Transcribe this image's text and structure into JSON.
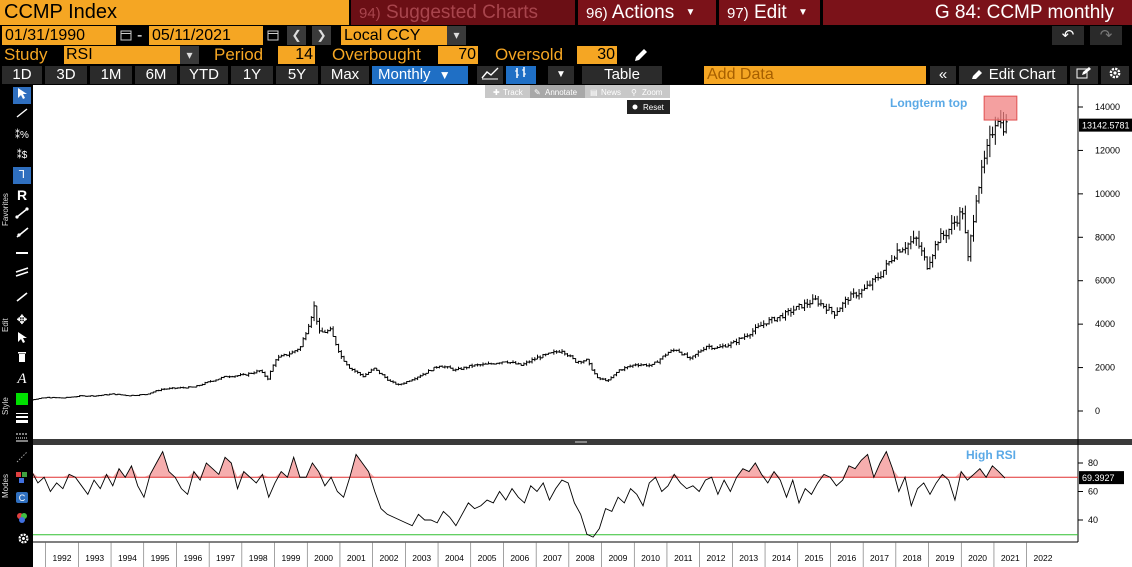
{
  "header": {
    "ticker": "CCMP Index",
    "suggested_num": "94)",
    "suggested_label": "Suggested Charts",
    "actions_num": "96)",
    "actions_label": "Actions",
    "edit_num": "97)",
    "edit_label": "Edit",
    "chart_title": "G 84: CCMP monthly"
  },
  "range": {
    "start_date": "01/31/1990",
    "end_date": "05/11/2021",
    "currency": "Local CCY"
  },
  "study": {
    "study_label": "Study",
    "study_value": "RSI",
    "period_label": "Period",
    "period_value": "14",
    "overbought_label": "Overbought",
    "overbought_value": "70",
    "oversold_label": "Oversold",
    "oversold_value": "30"
  },
  "toolbar": {
    "ranges": [
      "1D",
      "3D",
      "1M",
      "6M",
      "YTD",
      "1Y",
      "5Y",
      "Max"
    ],
    "frequency": "Monthly",
    "table_label": "Table",
    "add_data_placeholder": "Add Data",
    "edit_chart_label": "Edit Chart"
  },
  "chart_tools": {
    "track": "Track",
    "annotate": "Annotate",
    "news": "News",
    "zoom": "Zoom",
    "reset": "Reset"
  },
  "side_labels": {
    "favorites": "Favorites",
    "edit": "Edit",
    "style": "Style",
    "modes": "Modes"
  },
  "colors": {
    "accent_orange": "#f5a623",
    "title_red": "#7b1219",
    "selected_blue": "#1f6fc5",
    "annotation_blue": "#5aa9e6",
    "overbought_line": "#e03030",
    "oversold_line": "#30c030",
    "rsi_fill": "#f4a0a0"
  },
  "chart_data": [
    {
      "type": "line",
      "panel": "price",
      "series": [
        {
          "name": "",
          "style": "ohlc-bars"
        }
      ],
      "x": [
        "1991-01",
        "1991-07",
        "1992-01",
        "1992-07",
        "1993-01",
        "1993-07",
        "1994-01",
        "1994-07",
        "1995-01",
        "1995-07",
        "1996-01",
        "1996-07",
        "1997-01",
        "1997-07",
        "1998-01",
        "1998-07",
        "1998-10",
        "1999-01",
        "1999-07",
        "1999-10",
        "2000-01",
        "2000-03",
        "2000-05",
        "2000-09",
        "2001-01",
        "2001-04",
        "2001-09",
        "2002-01",
        "2002-07",
        "2002-10",
        "2003-01",
        "2003-07",
        "2004-01",
        "2004-07",
        "2005-01",
        "2005-07",
        "2006-01",
        "2006-07",
        "2007-01",
        "2007-10",
        "2008-03",
        "2008-07",
        "2008-11",
        "2009-03",
        "2009-07",
        "2010-01",
        "2010-07",
        "2011-01",
        "2011-04",
        "2011-09",
        "2012-03",
        "2012-07",
        "2013-01",
        "2013-07",
        "2014-01",
        "2014-07",
        "2015-01",
        "2015-07",
        "2016-02",
        "2016-07",
        "2017-01",
        "2017-07",
        "2018-01",
        "2018-08",
        "2018-12",
        "2019-04",
        "2019-07",
        "2020-01",
        "2020-03",
        "2020-06",
        "2020-09",
        "2021-01",
        "2021-02",
        "2021-03",
        "2021-05"
      ],
      "values": [
        460,
        520,
        620,
        600,
        690,
        700,
        780,
        710,
        760,
        1000,
        1060,
        1100,
        1370,
        1600,
        1650,
        1850,
        1500,
        2400,
        2700,
        2950,
        4000,
        4800,
        3600,
        3700,
        2500,
        2000,
        1600,
        1950,
        1350,
        1200,
        1350,
        1700,
        2100,
        1880,
        2090,
        2150,
        2300,
        2100,
        2460,
        2800,
        2280,
        2340,
        1500,
        1400,
        1890,
        2150,
        2100,
        2700,
        2830,
        2380,
        3000,
        2900,
        3140,
        3600,
        4100,
        4400,
        4800,
        5100,
        4500,
        5200,
        5600,
        6300,
        7400,
        7900,
        6700,
        7900,
        8200,
        9200,
        7000,
        9900,
        11500,
        13400,
        13600,
        13200,
        13142.5781
      ],
      "ylim": [
        -800,
        15400
      ],
      "yticks": [
        0,
        2000,
        4000,
        6000,
        8000,
        10000,
        12000,
        14000
      ],
      "last_value": "13142.5781",
      "annotation": "Longterm top",
      "grid": false
    },
    {
      "type": "line",
      "panel": "rsi",
      "series": [
        {
          "name": "",
          "values": [
            60,
            68,
            62,
            74,
            66,
            70,
            60,
            66,
            62,
            72,
            70,
            64,
            58,
            68,
            62,
            72,
            64,
            76,
            70,
            78,
            64,
            56,
            72,
            80,
            88,
            74,
            70,
            62,
            58,
            74,
            68,
            80,
            76,
            72,
            84,
            80,
            62,
            74,
            70,
            66,
            72,
            56,
            66,
            74,
            70,
            84,
            70,
            70,
            80,
            74,
            64,
            70,
            60,
            56,
            70,
            86,
            80,
            74,
            60,
            48,
            44,
            42,
            40,
            38,
            36,
            44,
            40,
            40,
            38,
            46,
            42,
            36,
            44,
            52,
            48,
            50,
            54,
            52,
            60,
            54,
            62,
            56,
            52,
            64,
            60,
            66,
            54,
            62,
            68,
            66,
            52,
            44,
            30,
            28,
            34,
            48,
            46,
            56,
            52,
            62,
            58,
            50,
            66,
            70,
            60,
            64,
            72,
            66,
            62,
            64,
            60,
            68,
            70,
            58,
            68,
            60,
            70,
            76,
            74,
            80,
            72,
            66,
            74,
            68,
            56,
            68,
            52,
            62,
            58,
            66,
            72,
            70,
            64,
            68,
            78,
            76,
            82,
            86,
            70,
            80,
            88,
            76,
            60,
            70,
            50,
            62,
            66,
            58,
            66,
            72,
            68,
            54,
            74,
            68,
            72,
            76,
            70,
            78,
            74,
            69.39
          ]
        }
      ],
      "x_start": "1991-01",
      "x_end": "2021-05",
      "ylim": [
        28,
        92
      ],
      "yticks": [
        40,
        60,
        80
      ],
      "overbought": 70,
      "oversold": 30,
      "last_value": "69.3927",
      "annotation": "High RSI"
    }
  ],
  "xaxis": {
    "years": [
      "1992",
      "1993",
      "1994",
      "1995",
      "1996",
      "1997",
      "1998",
      "1999",
      "2000",
      "2001",
      "2002",
      "2003",
      "2004",
      "2005",
      "2006",
      "2007",
      "2008",
      "2009",
      "2010",
      "2011",
      "2012",
      "2013",
      "2014",
      "2015",
      "2016",
      "2017",
      "2018",
      "2019",
      "2020",
      "2021",
      "2022"
    ]
  }
}
